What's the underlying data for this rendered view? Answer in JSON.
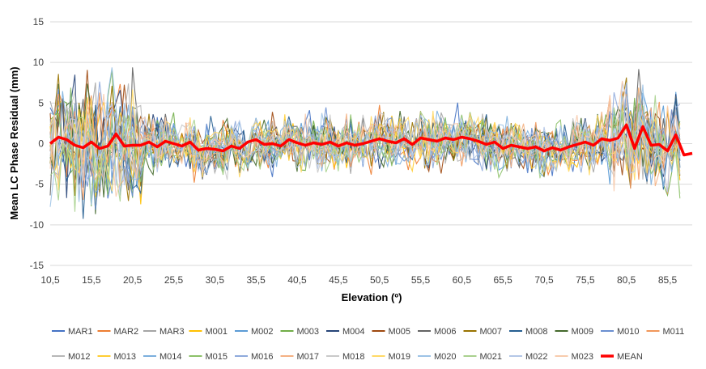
{
  "chart_data": {
    "type": "line",
    "xlabel": "Elevation (º)",
    "ylabel": "Mean LC Phase Residual (mm)",
    "ylim": [
      -15,
      15
    ],
    "xlim": [
      10.5,
      88.5
    ],
    "x_step": 0.5,
    "x_tick_labels": [
      "10,5",
      "15,5",
      "20,5",
      "25,5",
      "30,5",
      "35,5",
      "40,5",
      "45,5",
      "50,5",
      "55,5",
      "60,5",
      "65,5",
      "70,5",
      "75,5",
      "80,5",
      "85,5"
    ],
    "y_tick_labels": [
      "-15",
      "-10",
      "-5",
      "0",
      "5",
      "10",
      "15"
    ],
    "grid": "horizontal",
    "legend_position": "bottom",
    "series": [
      {
        "name": "MAR1",
        "color": "#4472C4"
      },
      {
        "name": "MAR2",
        "color": "#ED7D31"
      },
      {
        "name": "MAR3",
        "color": "#A5A5A5"
      },
      {
        "name": "M001",
        "color": "#FFC000"
      },
      {
        "name": "M002",
        "color": "#5B9BD5"
      },
      {
        "name": "M003",
        "color": "#70AD47"
      },
      {
        "name": "M004",
        "color": "#264478"
      },
      {
        "name": "M005",
        "color": "#9E480E"
      },
      {
        "name": "M006",
        "color": "#636363"
      },
      {
        "name": "M007",
        "color": "#997300"
      },
      {
        "name": "M008",
        "color": "#255E91"
      },
      {
        "name": "M009",
        "color": "#43682B"
      },
      {
        "name": "M010",
        "color": "#698ED0"
      },
      {
        "name": "M011",
        "color": "#F1975A"
      },
      {
        "name": "M012",
        "color": "#B7B7B7"
      },
      {
        "name": "M013",
        "color": "#FFCD33"
      },
      {
        "name": "M014",
        "color": "#7CAFDD"
      },
      {
        "name": "M015",
        "color": "#8CC168"
      },
      {
        "name": "M016",
        "color": "#8FAADC"
      },
      {
        "name": "M017",
        "color": "#F4B183"
      },
      {
        "name": "M018",
        "color": "#C9C9C9"
      },
      {
        "name": "M019",
        "color": "#FFD966"
      },
      {
        "name": "M020",
        "color": "#9DC3E6"
      },
      {
        "name": "M021",
        "color": "#A9D18E"
      },
      {
        "name": "M022",
        "color": "#B4C7E7"
      },
      {
        "name": "M023",
        "color": "#F8CBAD"
      },
      {
        "name": "MEAN",
        "color": "#FF0000",
        "x": [
          10.5,
          11.5,
          12.5,
          13.5,
          14.5,
          15.5,
          16.5,
          17.5,
          18.5,
          19.5,
          20.5,
          21.5,
          22.5,
          23.5,
          24.5,
          25.5,
          26.5,
          27.5,
          28.5,
          29.5,
          30.5,
          31.5,
          32.5,
          33.5,
          34.5,
          35.5,
          36.5,
          37.5,
          38.5,
          39.5,
          40.5,
          41.5,
          42.5,
          43.5,
          44.5,
          45.5,
          46.5,
          47.5,
          48.5,
          49.5,
          50.5,
          51.5,
          52.5,
          53.5,
          54.5,
          55.5,
          56.5,
          57.5,
          58.5,
          59.5,
          60.5,
          61.5,
          62.5,
          63.5,
          64.5,
          65.5,
          66.5,
          67.5,
          68.5,
          69.5,
          70.5,
          71.5,
          72.5,
          73.5,
          74.5,
          75.5,
          76.5,
          77.5,
          78.5,
          79.5,
          80.5,
          81.5,
          82.5,
          83.5,
          84.5,
          85.5,
          86.5,
          87.5,
          88.5
        ],
        "values": [
          0,
          0.8,
          0.5,
          -0.2,
          -0.5,
          0.2,
          -0.6,
          -0.3,
          1.2,
          -0.3,
          -0.2,
          -0.2,
          0.2,
          -0.4,
          0.3,
          0,
          -0.3,
          0.2,
          -0.8,
          -0.6,
          -0.7,
          -0.9,
          -0.3,
          -0.6,
          0.2,
          0.5,
          -0.1,
          0,
          -0.3,
          0.5,
          0.1,
          -0.2,
          0.1,
          -0.1,
          0.2,
          -0.3,
          0.1,
          -0.2,
          0,
          0.3,
          0.6,
          0.3,
          0.1,
          0.6,
          -0.1,
          0.7,
          0.5,
          0.3,
          0.7,
          0.5,
          0.8,
          0.6,
          0.3,
          -0.1,
          0.2,
          -0.6,
          -0.2,
          -0.4,
          -0.6,
          -0.4,
          -0.9,
          -0.5,
          -0.8,
          -0.4,
          -0.1,
          0.2,
          -0.2,
          0.6,
          0.4,
          0.7,
          2.3,
          -0.6,
          2.1,
          -0.2,
          -0.1,
          -0.9,
          1.1,
          -1.4,
          -1.2
        ]
      }
    ]
  }
}
